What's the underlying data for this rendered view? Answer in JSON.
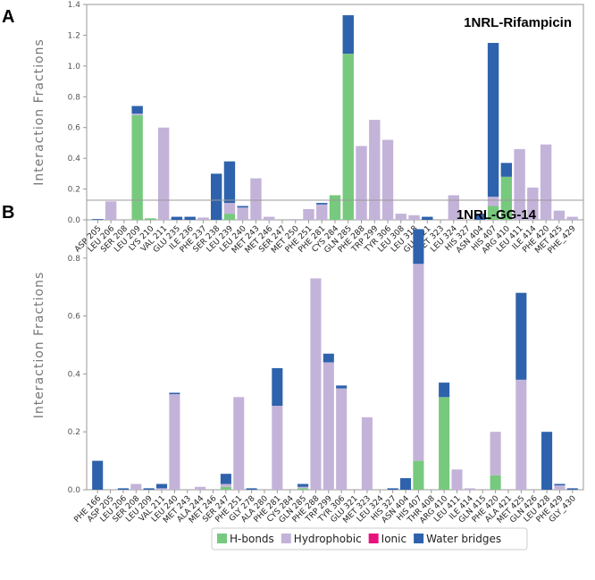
{
  "colors": {
    "hbond": "#77c97e",
    "hydrophobic": "#c3b3d9",
    "ionic": "#e8127c",
    "water": "#2e62ac"
  },
  "legend": [
    "H-bonds",
    "Hydrophobic",
    "Ionic",
    "Water bridges"
  ],
  "chart_data": [
    {
      "type": "bar",
      "stacked": true,
      "panel": "A",
      "title": "1NRL-Rifampicin",
      "ylabel": "Interaction  Fractions",
      "ylim": [
        0,
        1.4
      ],
      "yticks": [
        0,
        0.2,
        0.4,
        0.6,
        0.8,
        1.0,
        1.2,
        1.4
      ],
      "categories": [
        "ASP 205",
        "LEU 206",
        "SER 208",
        "LEU 209",
        "LYS 210",
        "VAL 211",
        "GLU 235",
        "ILE 236",
        "PHE 237",
        "SER 238",
        "LEU 239",
        "LEU 240",
        "MET 243",
        "MET 246",
        "SER 247",
        "MET 250",
        "PHE 251",
        "PHE 281",
        "CYS 284",
        "GLN 285",
        "PHE 288",
        "TRP 299",
        "TYR 306",
        "LEU 308",
        "LEU 318",
        "GLU 321",
        "MET 323",
        "LEU 324",
        "HIS 327",
        "ASN 404",
        "HIS 407",
        "ARG 410",
        "LEU 411",
        "ILE 414",
        "PHE 420",
        "MET 425",
        "PHE_429"
      ],
      "series": [
        {
          "name": "H-bonds",
          "values": [
            0,
            0,
            0,
            0.68,
            0.01,
            0,
            0,
            0,
            0,
            0,
            0.04,
            0,
            0,
            0,
            0,
            0,
            0,
            0,
            0.16,
            1.08,
            0,
            0,
            0,
            0,
            0,
            0,
            0,
            0,
            0,
            0,
            0.09,
            0.28,
            0,
            0,
            0,
            0,
            0
          ]
        },
        {
          "name": "Hydrophobic",
          "values": [
            0,
            0.12,
            0,
            0.01,
            0,
            0.6,
            0,
            0,
            0.015,
            0,
            0.07,
            0.08,
            0.27,
            0.02,
            0,
            0.005,
            0.07,
            0.1,
            0,
            0,
            0.48,
            0.65,
            0.52,
            0.04,
            0.03,
            0,
            0,
            0.16,
            0,
            0,
            0.06,
            0,
            0.46,
            0.21,
            0.49,
            0.06,
            0.02
          ]
        },
        {
          "name": "Ionic",
          "values": [
            0,
            0,
            0,
            0,
            0,
            0,
            0,
            0,
            0,
            0,
            0,
            0,
            0,
            0,
            0,
            0,
            0,
            0,
            0,
            0,
            0,
            0,
            0,
            0,
            0,
            0,
            0,
            0,
            0,
            0,
            0,
            0,
            0,
            0,
            0,
            0,
            0
          ]
        },
        {
          "name": "Water bridges",
          "values": [
            0.005,
            0,
            0,
            0.05,
            0,
            0,
            0.02,
            0.02,
            0,
            0.3,
            0.27,
            0.01,
            0,
            0,
            0,
            0,
            0,
            0.01,
            0,
            0.25,
            0,
            0,
            0,
            0,
            0,
            0.02,
            0,
            0,
            0,
            0.04,
            1.0,
            0.09,
            0,
            0,
            0,
            0,
            0
          ]
        }
      ]
    },
    {
      "type": "bar",
      "stacked": true,
      "panel": "B",
      "title": "1NRL-GG-14",
      "ylabel": "Interaction  Fractions",
      "ylim": [
        0,
        1.0
      ],
      "yticks": [
        0,
        0.2,
        0.4,
        0.6,
        0.8
      ],
      "categories": [
        "PHE 166",
        "ASP 205",
        "LEU 206",
        "SER 208",
        "LEU 209",
        "VAL 211",
        "LEU 240",
        "MET 243",
        "ALA 244",
        "MET 246",
        "SER 247",
        "PHE 251",
        "GLY 278",
        "ALA 280",
        "PHE 281",
        "CYS 284",
        "GLN 285",
        "PHE 288",
        "TRP 299",
        "TYR 306",
        "GLU 321",
        "MET 323",
        "LEU 324",
        "HIS 327",
        "ASN 404",
        "HIS 407",
        "THR 408",
        "ARG 410",
        "LEU 411",
        "ILE 414",
        "GLN 415",
        "PHE 420",
        "ALA 421",
        "MET 425",
        "GLN 426",
        "LEU 428",
        "PHE 429",
        "GLY_430"
      ],
      "series": [
        {
          "name": "H-bonds",
          "values": [
            0,
            0,
            0,
            0,
            0,
            0,
            0,
            0,
            0,
            0,
            0.01,
            0,
            0,
            0,
            0,
            0,
            0.005,
            0,
            0,
            0,
            0,
            0,
            0,
            0,
            0,
            0.1,
            0,
            0.32,
            0,
            0,
            0,
            0.05,
            0,
            0,
            0,
            0,
            0,
            0
          ]
        },
        {
          "name": "Hydrophobic",
          "values": [
            0,
            0,
            0,
            0.02,
            0,
            0.005,
            0.33,
            0,
            0.01,
            0,
            0.01,
            0.32,
            0,
            0,
            0.29,
            0,
            0.005,
            0.73,
            0.44,
            0.35,
            0,
            0.25,
            0,
            0,
            0,
            0.68,
            0,
            0,
            0.07,
            0.005,
            0,
            0.15,
            0,
            0.38,
            0,
            0,
            0.015,
            0
          ]
        },
        {
          "name": "Ionic",
          "values": [
            0,
            0,
            0,
            0,
            0,
            0,
            0,
            0,
            0,
            0,
            0,
            0,
            0,
            0,
            0,
            0,
            0,
            0,
            0,
            0,
            0,
            0,
            0,
            0,
            0,
            0,
            0,
            0,
            0,
            0,
            0,
            0,
            0,
            0,
            0,
            0,
            0,
            0
          ]
        },
        {
          "name": "Water bridges",
          "values": [
            0.1,
            0,
            0.005,
            0,
            0.005,
            0.015,
            0.005,
            0,
            0,
            0,
            0.035,
            0,
            0.005,
            0,
            0.13,
            0,
            0.01,
            0,
            0.03,
            0.01,
            0,
            0,
            0,
            0.005,
            0.04,
            0.12,
            0,
            0.05,
            0,
            0,
            0,
            0,
            0,
            0.3,
            0,
            0.2,
            0.005,
            0.005
          ]
        }
      ]
    }
  ]
}
